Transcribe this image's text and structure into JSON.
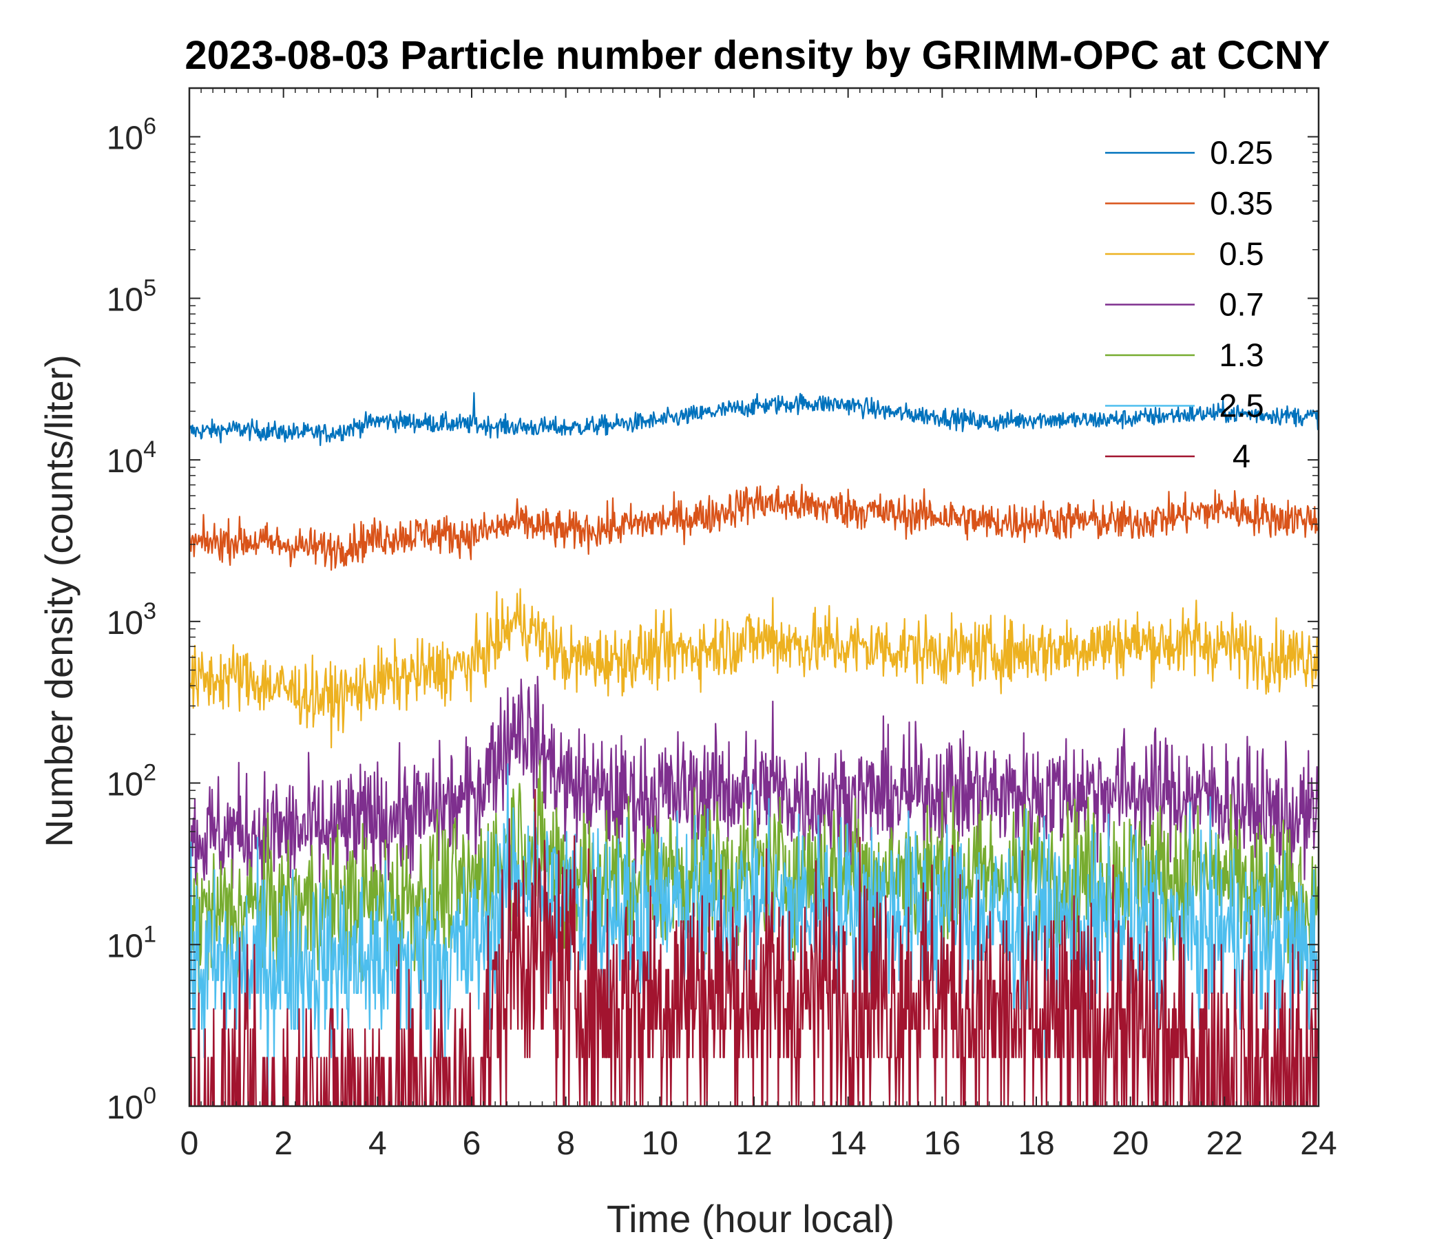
{
  "chart_data": {
    "type": "line",
    "title": "2023-08-03 Particle number density by GRIMM-OPC at CCNY",
    "xlabel": "Time (hour local)",
    "ylabel": "Number density (counts/liter)",
    "xlim": [
      0,
      24
    ],
    "ylim": [
      1,
      2000000
    ],
    "yscale": "log",
    "x_ticks": [
      0,
      2,
      4,
      6,
      8,
      10,
      12,
      14,
      16,
      18,
      20,
      22,
      24
    ],
    "x_tick_labels": [
      "0",
      "2",
      "4",
      "6",
      "8",
      "10",
      "12",
      "14",
      "16",
      "18",
      "20",
      "22",
      "24"
    ],
    "y_ticks": [
      {
        "value": 1,
        "base": "10",
        "exp": "0"
      },
      {
        "value": 10,
        "base": "10",
        "exp": "1"
      },
      {
        "value": 100,
        "base": "10",
        "exp": "2"
      },
      {
        "value": 1000,
        "base": "10",
        "exp": "3"
      },
      {
        "value": 10000,
        "base": "10",
        "exp": "4"
      },
      {
        "value": 100000,
        "base": "10",
        "exp": "5"
      },
      {
        "value": 1000000,
        "base": "10",
        "exp": "6"
      }
    ],
    "legend_position": "top-right",
    "x": [
      0,
      1,
      2,
      3,
      4,
      5,
      6,
      7,
      8,
      9,
      10,
      11,
      12,
      13,
      14,
      15,
      16,
      17,
      18,
      19,
      20,
      21,
      22,
      23,
      24
    ],
    "series": [
      {
        "name": "0.25",
        "color": "#0072BD",
        "noise": 0.03,
        "values": [
          15000,
          15500,
          14800,
          14600,
          17500,
          17000,
          16500,
          16000,
          15800,
          16500,
          17500,
          19500,
          21500,
          22500,
          22000,
          19500,
          18500,
          17000,
          18000,
          17500,
          18000,
          19000,
          19500,
          19000,
          18500
        ]
      },
      {
        "name": "0.35",
        "color": "#D95319",
        "noise": 0.06,
        "values": [
          3000,
          3200,
          3000,
          2800,
          3300,
          3500,
          3400,
          4100,
          3600,
          3800,
          4200,
          4500,
          5500,
          5200,
          5000,
          4600,
          4500,
          4100,
          4200,
          4200,
          4100,
          4500,
          5000,
          4400,
          4300
        ]
      },
      {
        "name": "0.5",
        "color": "#EDB120",
        "noise": 0.1,
        "values": [
          420,
          460,
          380,
          330,
          420,
          480,
          540,
          1050,
          580,
          580,
          640,
          680,
          780,
          720,
          700,
          680,
          640,
          640,
          660,
          700,
          740,
          720,
          720,
          600,
          620
        ]
      },
      {
        "name": "0.7",
        "color": "#7E2F8E",
        "noise": 0.18,
        "values": [
          45,
          50,
          50,
          50,
          60,
          65,
          80,
          250,
          100,
          80,
          85,
          90,
          90,
          80,
          80,
          85,
          90,
          85,
          85,
          90,
          90,
          85,
          80,
          65,
          60
        ]
      },
      {
        "name": "1.3",
        "color": "#77AC30",
        "noise": 0.22,
        "values": [
          14,
          16,
          17,
          18,
          18,
          20,
          22,
          50,
          28,
          26,
          27,
          28,
          30,
          28,
          28,
          27,
          28,
          27,
          27,
          28,
          28,
          27,
          25,
          20,
          18
        ]
      },
      {
        "name": "2.5",
        "color": "#4DBEEE",
        "noise": 0.28,
        "values": [
          7,
          7,
          8,
          8,
          8,
          8,
          9,
          30,
          17,
          17,
          16,
          17,
          18,
          17,
          17,
          16,
          16,
          14,
          14,
          13,
          13,
          12,
          12,
          10,
          9
        ]
      },
      {
        "name": "4",
        "color": "#A2142F",
        "noise": 0.4,
        "values": [
          0.9,
          0.9,
          0.9,
          1.0,
          1.2,
          1.2,
          1.2,
          12,
          6,
          4,
          5,
          5,
          5,
          4.5,
          5,
          5,
          5,
          3.5,
          3,
          3,
          3,
          2,
          2,
          1.5,
          1.5
        ]
      }
    ],
    "spikes": [
      {
        "series": "0.25",
        "x": 6.05,
        "value": 26000
      },
      {
        "series": "0.35",
        "x": 9.0,
        "value": 5800
      },
      {
        "series": "0.5",
        "x": 12.4,
        "value": 1400
      },
      {
        "series": "0.5",
        "x": 13.6,
        "value": 1250
      },
      {
        "series": "0.5",
        "x": 21.4,
        "value": 1350
      },
      {
        "series": "0.7",
        "x": 12.4,
        "value": 320
      },
      {
        "series": "0.7",
        "x": 7.0,
        "value": 350
      }
    ]
  }
}
